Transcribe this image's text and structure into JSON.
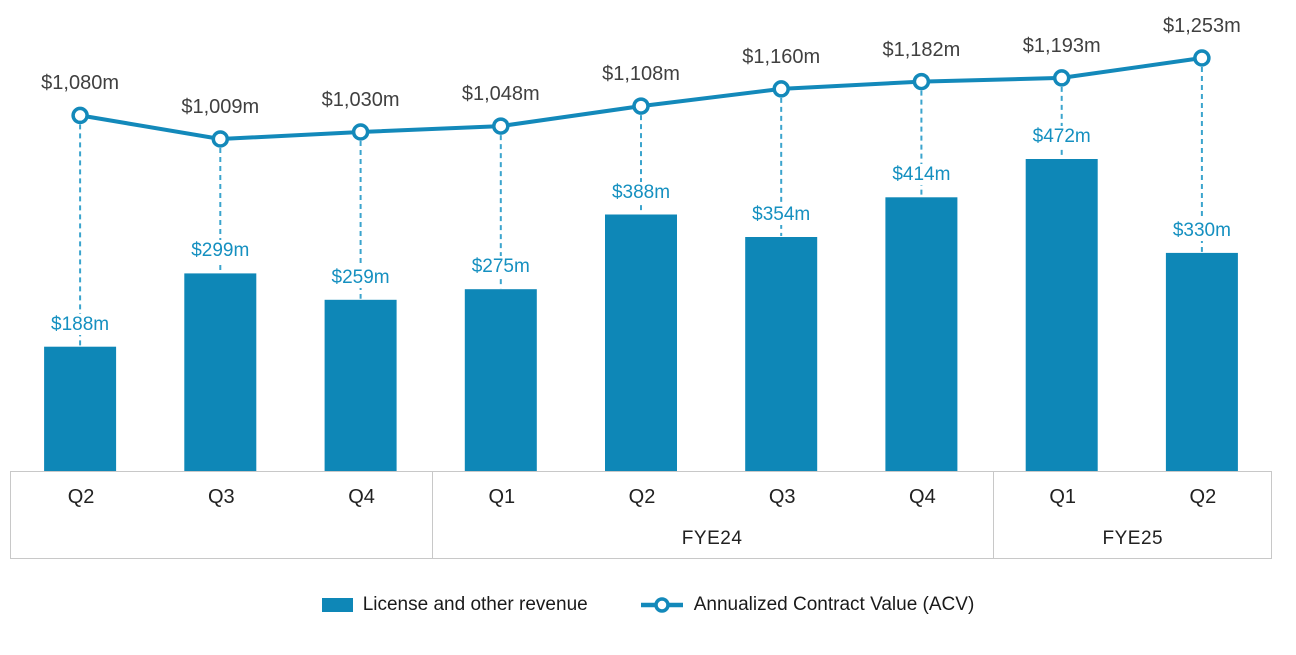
{
  "chart_data": {
    "type": "combo",
    "title": "",
    "categories": [
      "Q2",
      "Q3",
      "Q4",
      "Q1",
      "Q2",
      "Q3",
      "Q4",
      "Q1",
      "Q2"
    ],
    "category_groups": [
      {
        "label": "",
        "from": 0,
        "to": 2
      },
      {
        "label": "FYE24",
        "from": 3,
        "to": 6
      },
      {
        "label": "FYE25",
        "from": 7,
        "to": 8
      }
    ],
    "series": [
      {
        "name": "License and other revenue",
        "type": "bar",
        "color": "#0e87b7",
        "label_color": "#1590c0",
        "values": [
          188,
          299,
          259,
          275,
          388,
          354,
          414,
          472,
          330
        ],
        "labels": [
          "$188m",
          "$299m",
          "$259m",
          "$275m",
          "$388m",
          "$354m",
          "$414m",
          "$472m",
          "$330m"
        ]
      },
      {
        "name": "Annualized Contract Value (ACV)",
        "type": "line",
        "color": "#1389ba",
        "marker": "open-circle",
        "connector_color": "#3ba4cd",
        "label_color": "#404040",
        "values": [
          1080,
          1009,
          1030,
          1048,
          1108,
          1160,
          1182,
          1193,
          1253
        ],
        "labels": [
          "$1,080m",
          "$1,009m",
          "$1,030m",
          "$1,048m",
          "$1,108m",
          "$1,160m",
          "$1,182m",
          "$1,193m",
          "$1,253m"
        ]
      }
    ],
    "legend_position": "bottom",
    "grid": false
  },
  "colors": {
    "axis_border": "#c8c8c8",
    "background": "#ffffff"
  }
}
